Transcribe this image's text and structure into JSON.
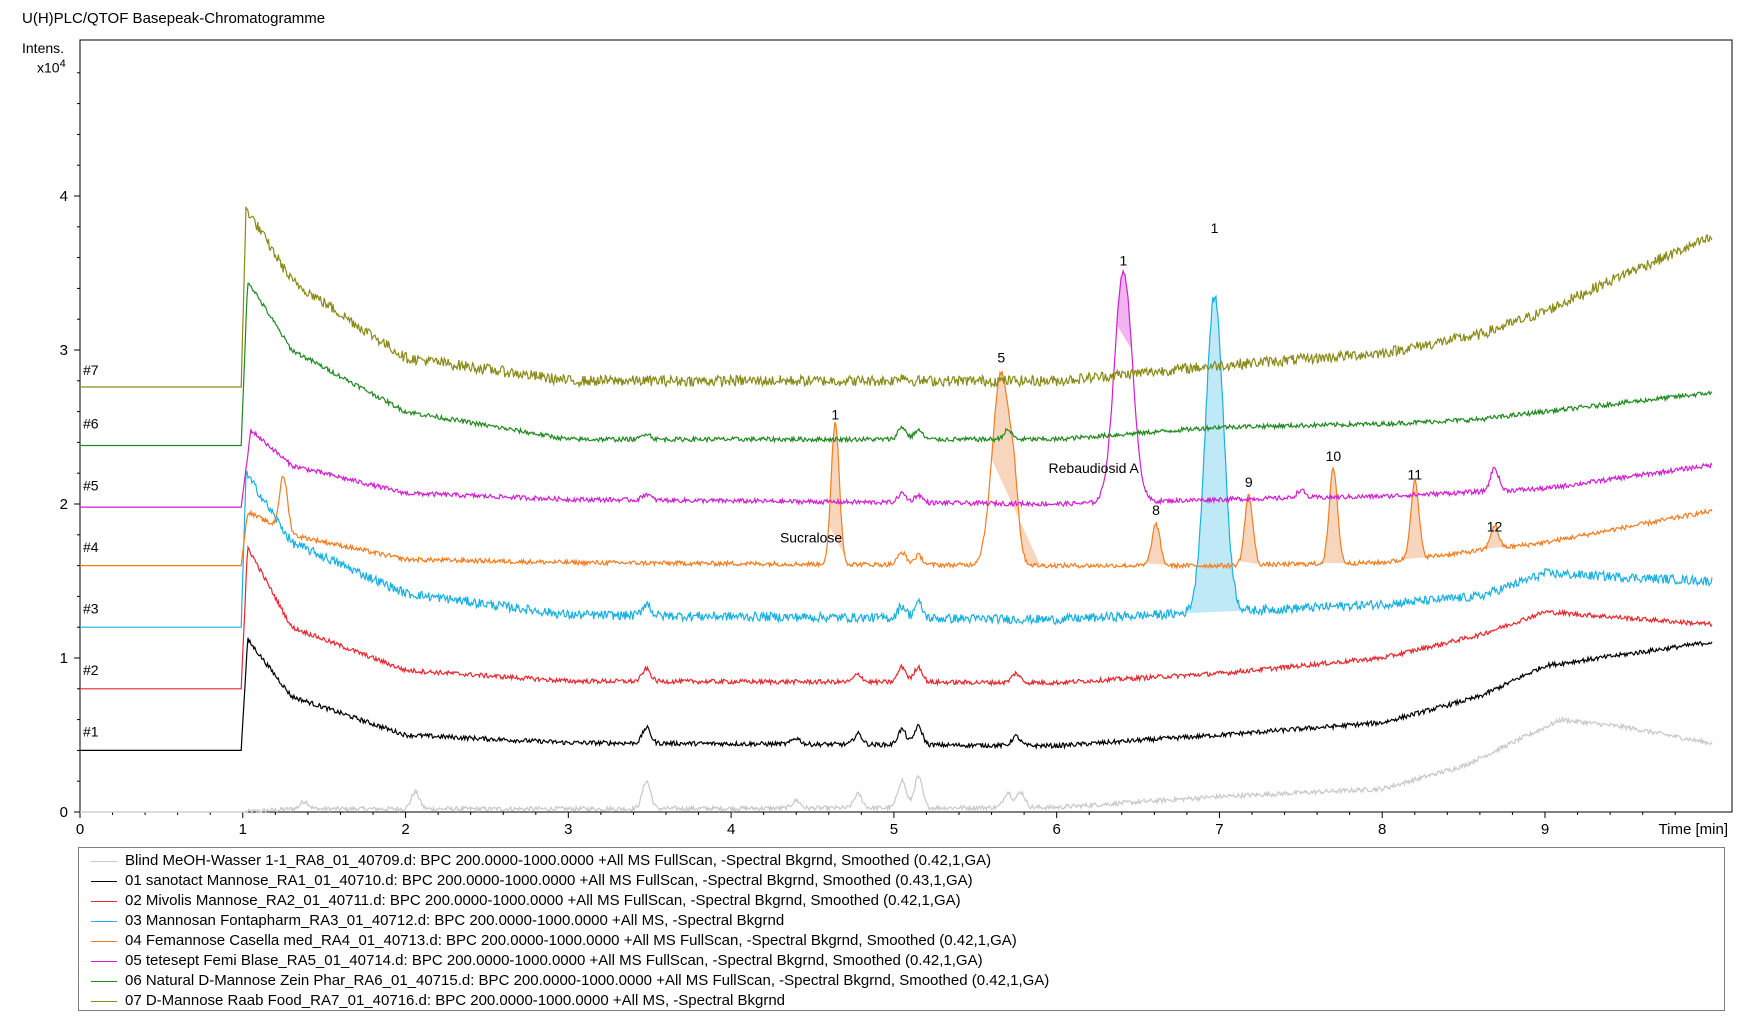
{
  "title": "U(H)PLC/QTOF Basepeak-Chromatogramme",
  "ylabel_line1": "Intens.",
  "ylabel_line2_base": "x10",
  "ylabel_line2_exp": "4",
  "xlabel": "Time [min]",
  "chart_data": {
    "type": "line",
    "x_range": [
      0,
      10
    ],
    "y_range": [
      0,
      5
    ],
    "y_unit": "x10^4",
    "x_ticks": [
      "0",
      "1",
      "2",
      "3",
      "4",
      "5",
      "6",
      "7",
      "8",
      "9"
    ],
    "y_ticks": [
      "0",
      "1",
      "2",
      "3",
      "4"
    ],
    "grid": false,
    "legend_position": "bottom",
    "series": [
      {
        "id": "blank",
        "trace_label": "",
        "color": "#c8c8c8",
        "offset": 0.0,
        "legend": "Blind MeOH-Wasser 1-1_RA8_01_40709.d: BPC 200.0000-1000.0000 +All MS FullScan, -Spectral Bkgrnd, Smoothed (0.42,1,GA)",
        "peaks": [
          [
            1.38,
            0.05
          ],
          [
            2.06,
            0.11
          ],
          [
            3.48,
            0.18
          ],
          [
            4.4,
            0.05
          ],
          [
            4.78,
            0.09
          ],
          [
            5.05,
            0.18
          ],
          [
            5.15,
            0.2
          ],
          [
            5.7,
            0.1
          ],
          [
            5.78,
            0.1
          ]
        ],
        "baseline": [
          [
            0,
            0
          ],
          [
            1,
            0
          ],
          [
            1.3,
            0.02
          ],
          [
            3,
            0.02
          ],
          [
            6,
            0.03
          ],
          [
            7,
            0.1
          ],
          [
            8,
            0.15
          ],
          [
            8.5,
            0.3
          ],
          [
            9.1,
            0.6
          ],
          [
            9.5,
            0.55
          ],
          [
            10,
            0.45
          ]
        ]
      },
      {
        "id": "t1",
        "trace_label": "#1",
        "color": "#000000",
        "offset": 0.4,
        "legend": "01 sanotact Mannose_RA1_01_40710.d: BPC 200.0000-1000.0000 +All MS FullScan, -Spectral Bkgrnd, Smoothed (0.43,1,GA)",
        "peaks": [
          [
            3.48,
            0.1
          ],
          [
            4.4,
            0.04
          ],
          [
            4.78,
            0.07
          ],
          [
            5.05,
            0.1
          ],
          [
            5.15,
            0.12
          ],
          [
            5.75,
            0.06
          ]
        ],
        "baseline": [
          [
            0,
            0.4
          ],
          [
            0.99,
            0.4
          ],
          [
            1.03,
            1.12
          ],
          [
            1.3,
            0.75
          ],
          [
            2,
            0.5
          ],
          [
            3,
            0.45
          ],
          [
            6,
            0.43
          ],
          [
            7,
            0.5
          ],
          [
            8,
            0.58
          ],
          [
            8.6,
            0.75
          ],
          [
            9,
            0.95
          ],
          [
            10,
            1.1
          ]
        ]
      },
      {
        "id": "t2",
        "trace_label": "#2",
        "color": "#e8272e",
        "offset": 0.8,
        "legend": "02 Mivolis Mannose_RA2_01_40711.d: BPC 200.0000-1000.0000 +All MS FullScan, -Spectral Bkgrnd, Smoothed (0.42,1,GA)",
        "peaks": [
          [
            3.48,
            0.08
          ],
          [
            4.78,
            0.05
          ],
          [
            5.05,
            0.1
          ],
          [
            5.15,
            0.1
          ],
          [
            5.75,
            0.06
          ]
        ],
        "baseline": [
          [
            0,
            0.8
          ],
          [
            0.99,
            0.8
          ],
          [
            1.03,
            1.72
          ],
          [
            1.3,
            1.2
          ],
          [
            2,
            0.92
          ],
          [
            3,
            0.85
          ],
          [
            6,
            0.84
          ],
          [
            7,
            0.9
          ],
          [
            8,
            1.0
          ],
          [
            8.6,
            1.15
          ],
          [
            9,
            1.3
          ],
          [
            10,
            1.22
          ]
        ]
      },
      {
        "id": "t3",
        "trace_label": "#3",
        "color": "#1ab0e0",
        "offset": 1.2,
        "legend": "03 Mannosan Fontapharm_RA3_01_40712.d: BPC 200.0000-1000.0000 +All MS, -Spectral Bkgrnd",
        "peaks": [
          [
            3.48,
            0.08
          ],
          [
            5.05,
            0.08
          ],
          [
            5.15,
            0.1
          ],
          [
            6.97,
            2.05
          ]
        ],
        "baseline": [
          [
            0,
            1.2
          ],
          [
            0.99,
            1.2
          ],
          [
            1.02,
            2.2
          ],
          [
            1.3,
            1.75
          ],
          [
            2,
            1.42
          ],
          [
            3,
            1.28
          ],
          [
            6,
            1.25
          ],
          [
            7,
            1.3
          ],
          [
            8,
            1.35
          ],
          [
            8.6,
            1.4
          ],
          [
            9,
            1.55
          ],
          [
            10,
            1.5
          ]
        ]
      },
      {
        "id": "t4",
        "trace_label": "#4",
        "color": "#f57c1f",
        "offset": 1.6,
        "legend": "04 Femannose Casella med_RA4_01_40713.d: BPC 200.0000-1000.0000 +All MS FullScan, -Spectral Bkgrnd, Smoothed (0.42,1,GA)",
        "peaks": [
          [
            1.25,
            0.35
          ],
          [
            4.64,
            0.92
          ],
          [
            5.05,
            0.08
          ],
          [
            5.15,
            0.06
          ],
          [
            5.66,
            1.25
          ],
          [
            5.74,
            0.28
          ],
          [
            6.61,
            0.27
          ],
          [
            7.18,
            0.45
          ],
          [
            7.7,
            0.62
          ],
          [
            8.2,
            0.5
          ],
          [
            8.69,
            0.15
          ]
        ],
        "baseline": [
          [
            0,
            1.6
          ],
          [
            0.99,
            1.6
          ],
          [
            1.03,
            1.95
          ],
          [
            1.3,
            1.8
          ],
          [
            2,
            1.64
          ],
          [
            3,
            1.62
          ],
          [
            6,
            1.6
          ],
          [
            7,
            1.6
          ],
          [
            8,
            1.62
          ],
          [
            9,
            1.75
          ],
          [
            10,
            1.95
          ]
        ]
      },
      {
        "id": "t5",
        "trace_label": "#5",
        "color": "#d11fd1",
        "offset": 2.0,
        "legend": "05 tetesept Femi Blase_RA5_01_40714.d: BPC 200.0000-1000.0000 +All MS FullScan, -Spectral Bkgrnd, Smoothed (0.42,1,GA)",
        "peaks": [
          [
            3.48,
            0.04
          ],
          [
            5.05,
            0.06
          ],
          [
            5.15,
            0.05
          ],
          [
            6.41,
            1.5
          ],
          [
            7.5,
            0.05
          ],
          [
            8.69,
            0.15
          ]
        ],
        "baseline": [
          [
            0,
            1.98
          ],
          [
            0.99,
            1.98
          ],
          [
            1.05,
            2.48
          ],
          [
            1.3,
            2.25
          ],
          [
            2,
            2.07
          ],
          [
            3,
            2.03
          ],
          [
            6,
            2.0
          ],
          [
            7,
            2.03
          ],
          [
            8,
            2.05
          ],
          [
            9,
            2.1
          ],
          [
            10,
            2.25
          ]
        ]
      },
      {
        "id": "t6",
        "trace_label": "#6",
        "color": "#1f8a1f",
        "offset": 2.4,
        "legend": "06 Natural D-Mannose Zein Phar_RA6_01_40715.d: BPC 200.0000-1000.0000 +All MS FullScan, -Spectral Bkgrnd, Smoothed (0.42,1,GA)",
        "peaks": [
          [
            3.48,
            0.04
          ],
          [
            5.05,
            0.08
          ],
          [
            5.15,
            0.06
          ],
          [
            5.7,
            0.06
          ]
        ],
        "baseline": [
          [
            0,
            2.38
          ],
          [
            0.99,
            2.38
          ],
          [
            1.03,
            3.45
          ],
          [
            1.3,
            3.0
          ],
          [
            2,
            2.6
          ],
          [
            3,
            2.42
          ],
          [
            6,
            2.42
          ],
          [
            7,
            2.5
          ],
          [
            8,
            2.52
          ],
          [
            8.6,
            2.55
          ],
          [
            9,
            2.6
          ],
          [
            10,
            2.72
          ]
        ]
      },
      {
        "id": "t7",
        "trace_label": "#7",
        "color": "#8a8a18",
        "offset": 2.75,
        "legend": "07 D-Mannose Raab Food_RA7_01_40716.d: BPC 200.0000-1000.0000 +All MS, -Spectral Bkgrnd",
        "peaks": [
          [
            5.05,
            0.03
          ]
        ],
        "baseline": [
          [
            0,
            2.76
          ],
          [
            0.99,
            2.76
          ],
          [
            1.02,
            3.92
          ],
          [
            1.3,
            3.45
          ],
          [
            2,
            2.95
          ],
          [
            3,
            2.8
          ],
          [
            6,
            2.8
          ],
          [
            7,
            2.9
          ],
          [
            8,
            2.98
          ],
          [
            8.6,
            3.1
          ],
          [
            9,
            3.25
          ],
          [
            9.5,
            3.5
          ],
          [
            10,
            3.72
          ]
        ]
      }
    ],
    "peak_labels": [
      {
        "text": "1",
        "x": 4.64,
        "y": 2.55,
        "color": "#000000"
      },
      {
        "text": "5",
        "x": 5.66,
        "y": 2.92,
        "color": "#000000"
      },
      {
        "text": "1",
        "x": 6.41,
        "y": 3.55,
        "color": "#000000"
      },
      {
        "text": "1",
        "x": 6.97,
        "y": 3.76,
        "color": "#000000"
      },
      {
        "text": "8",
        "x": 6.61,
        "y": 1.93,
        "color": "#000000"
      },
      {
        "text": "9",
        "x": 7.18,
        "y": 2.11,
        "color": "#000000"
      },
      {
        "text": "10",
        "x": 7.7,
        "y": 2.28,
        "color": "#000000"
      },
      {
        "text": "11",
        "x": 8.2,
        "y": 2.16,
        "color": "#000000"
      },
      {
        "text": "12",
        "x": 8.69,
        "y": 1.82,
        "color": "#000000"
      }
    ],
    "annotations": [
      {
        "text": "Sucralose",
        "x": 4.3,
        "y": 1.75
      },
      {
        "text": "Rebaudiosid A",
        "x": 5.95,
        "y": 2.2
      }
    ],
    "filled_peaks": [
      {
        "series": "t4",
        "x_start": 4.6,
        "x_end": 4.72,
        "color": "#f8d6bd"
      },
      {
        "series": "t4",
        "x_start": 5.6,
        "x_end": 5.9,
        "color": "#f8d6bd"
      },
      {
        "series": "t4",
        "x_start": 6.55,
        "x_end": 6.68,
        "color": "#f8d6bd"
      },
      {
        "series": "t4",
        "x_start": 7.12,
        "x_end": 7.26,
        "color": "#f8d6bd"
      },
      {
        "series": "t4",
        "x_start": 7.62,
        "x_end": 7.79,
        "color": "#f8d6bd"
      },
      {
        "series": "t4",
        "x_start": 8.12,
        "x_end": 8.29,
        "color": "#f8d6bd"
      },
      {
        "series": "t4",
        "x_start": 8.63,
        "x_end": 8.76,
        "color": "#f8d6bd"
      },
      {
        "series": "t5",
        "x_start": 6.37,
        "x_end": 6.46,
        "color": "#f1b4f1"
      },
      {
        "series": "t3",
        "x_start": 6.75,
        "x_end": 7.22,
        "color": "#bfe9f7"
      }
    ]
  }
}
